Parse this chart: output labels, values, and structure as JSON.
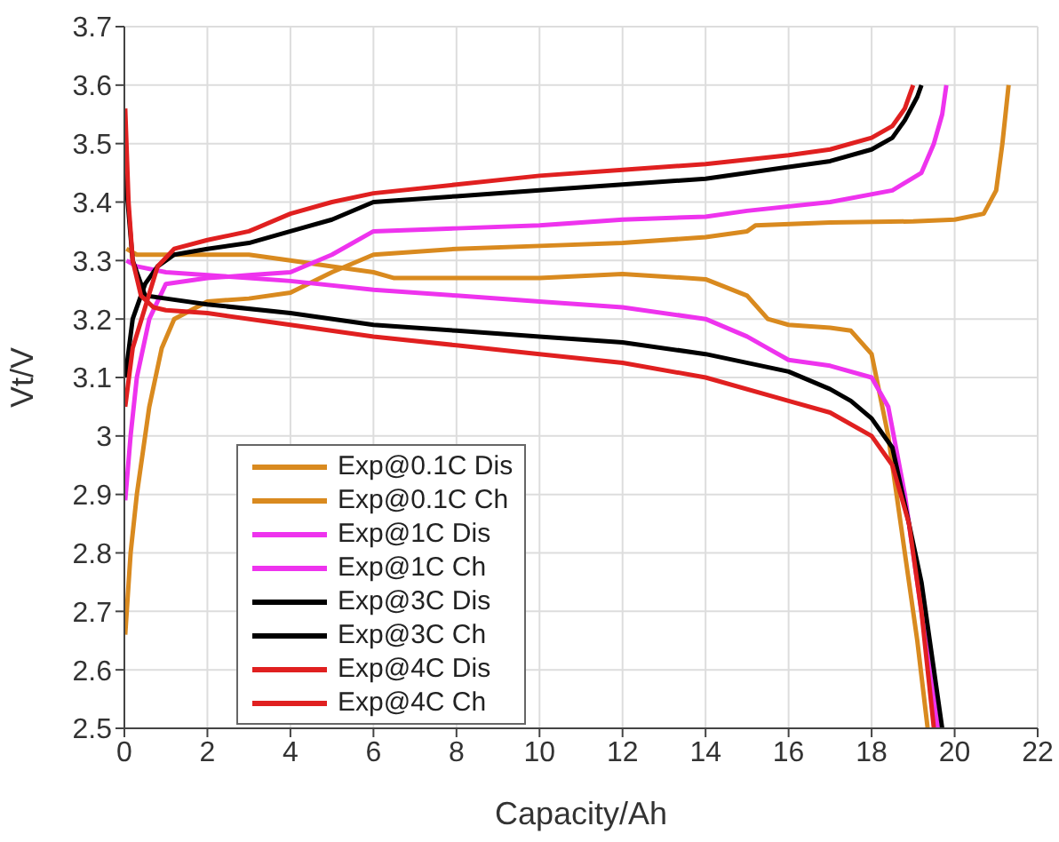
{
  "chart_data": {
    "type": "line",
    "xlabel": "Capacity/Ah",
    "ylabel": "Vt/V",
    "xlim": [
      0,
      22
    ],
    "xticks": [
      0,
      2,
      4,
      6,
      8,
      10,
      12,
      14,
      16,
      18,
      20,
      22
    ],
    "ylim": [
      2.5,
      3.7
    ],
    "yticks": [
      2.5,
      2.6,
      2.7,
      2.8,
      2.9,
      3,
      3.1,
      3.2,
      3.3,
      3.4,
      3.5,
      3.6,
      3.7
    ],
    "grid": true,
    "legend": "bottom left",
    "marker": "none",
    "line_style": "solid",
    "series": [
      {
        "name": "Exp@0.1C Dis",
        "color": "#d98a1f",
        "x": [
          0.05,
          0.3,
          1,
          2,
          3,
          4,
          5,
          6,
          6.5,
          8,
          10,
          12,
          14,
          15,
          15.5,
          16,
          17,
          17.5,
          18,
          18.4,
          18.8,
          19.1,
          19.35
        ],
        "values": [
          3.32,
          3.31,
          3.31,
          3.31,
          3.31,
          3.3,
          3.29,
          3.28,
          3.27,
          3.27,
          3.27,
          3.277,
          3.268,
          3.24,
          3.2,
          3.19,
          3.185,
          3.18,
          3.14,
          3.0,
          2.8,
          2.65,
          2.5
        ]
      },
      {
        "name": "Exp@0.1C Ch",
        "color": "#d98a1f",
        "x": [
          0.02,
          0.15,
          0.3,
          0.6,
          0.9,
          1.2,
          2,
          3,
          4,
          5,
          6,
          8,
          10,
          12,
          14,
          15,
          15.2,
          17,
          19,
          20,
          20.7,
          21,
          21.15,
          21.3
        ],
        "values": [
          2.66,
          2.8,
          2.9,
          3.05,
          3.15,
          3.2,
          3.23,
          3.235,
          3.245,
          3.28,
          3.31,
          3.32,
          3.325,
          3.33,
          3.34,
          3.35,
          3.36,
          3.365,
          3.367,
          3.37,
          3.38,
          3.42,
          3.5,
          3.6
        ]
      },
      {
        "name": "Exp@1C Dis",
        "color": "#ee33ee",
        "x": [
          0.05,
          0.3,
          1,
          2,
          3,
          4,
          6,
          8,
          10,
          12,
          14,
          15,
          15.5,
          16,
          17,
          18,
          18.4,
          18.8,
          19.2,
          19.6
        ],
        "values": [
          3.3,
          3.29,
          3.28,
          3.275,
          3.27,
          3.265,
          3.25,
          3.24,
          3.23,
          3.22,
          3.2,
          3.17,
          3.15,
          3.13,
          3.12,
          3.1,
          3.05,
          2.9,
          2.7,
          2.5
        ]
      },
      {
        "name": "Exp@1C Ch",
        "color": "#ee33ee",
        "x": [
          0.02,
          0.15,
          0.3,
          0.6,
          1,
          2,
          3,
          4,
          5,
          6,
          8,
          10,
          12,
          14,
          15,
          17,
          18.5,
          19.2,
          19.5,
          19.7,
          19.8
        ],
        "values": [
          2.89,
          3.0,
          3.1,
          3.2,
          3.26,
          3.27,
          3.275,
          3.28,
          3.31,
          3.35,
          3.355,
          3.36,
          3.37,
          3.375,
          3.385,
          3.4,
          3.42,
          3.45,
          3.5,
          3.55,
          3.6
        ]
      },
      {
        "name": "Exp@3C Dis",
        "color": "#000000",
        "x": [
          0.02,
          0.2,
          0.5,
          1,
          2,
          4,
          6,
          8,
          10,
          12,
          14,
          16,
          17,
          17.5,
          18,
          18.5,
          18.9,
          19.2,
          19.5,
          19.7
        ],
        "values": [
          3.45,
          3.3,
          3.24,
          3.235,
          3.225,
          3.21,
          3.19,
          3.18,
          3.17,
          3.16,
          3.14,
          3.11,
          3.08,
          3.06,
          3.03,
          2.98,
          2.85,
          2.75,
          2.6,
          2.5
        ]
      },
      {
        "name": "Exp@3C Ch",
        "color": "#000000",
        "x": [
          0.02,
          0.2,
          0.5,
          0.8,
          1.2,
          2,
          3,
          4,
          5,
          6,
          8,
          10,
          12,
          14,
          16,
          17,
          18,
          18.5,
          18.8,
          19.1,
          19.2
        ],
        "values": [
          3.1,
          3.2,
          3.26,
          3.29,
          3.31,
          3.32,
          3.33,
          3.35,
          3.37,
          3.4,
          3.41,
          3.42,
          3.43,
          3.44,
          3.46,
          3.47,
          3.49,
          3.51,
          3.54,
          3.58,
          3.6
        ]
      },
      {
        "name": "Exp@4C Dis",
        "color": "#e02020",
        "x": [
          0.02,
          0.1,
          0.2,
          0.4,
          0.7,
          1,
          2,
          4,
          6,
          8,
          10,
          12,
          14,
          16,
          17,
          18,
          18.5,
          18.9,
          19.2,
          19.5
        ],
        "values": [
          3.56,
          3.4,
          3.3,
          3.24,
          3.22,
          3.215,
          3.21,
          3.19,
          3.17,
          3.155,
          3.14,
          3.125,
          3.1,
          3.06,
          3.04,
          3.0,
          2.95,
          2.85,
          2.7,
          2.5
        ]
      },
      {
        "name": "Exp@4C Ch",
        "color": "#e02020",
        "x": [
          0.02,
          0.2,
          0.5,
          0.8,
          1.2,
          2,
          3,
          4,
          5,
          6,
          8,
          10,
          12,
          14,
          16,
          17,
          18,
          18.5,
          18.8,
          19
        ],
        "values": [
          3.05,
          3.15,
          3.22,
          3.29,
          3.32,
          3.335,
          3.35,
          3.38,
          3.4,
          3.415,
          3.43,
          3.445,
          3.455,
          3.465,
          3.48,
          3.49,
          3.51,
          3.53,
          3.56,
          3.6
        ]
      }
    ]
  }
}
